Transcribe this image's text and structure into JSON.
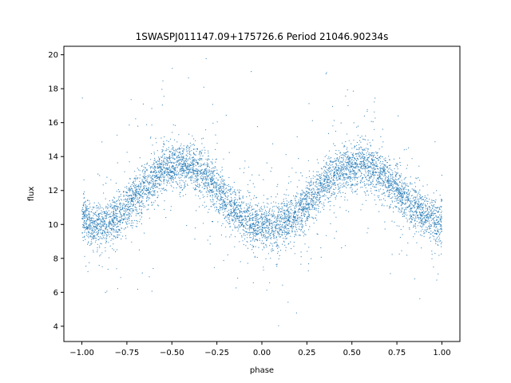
{
  "chart_data": {
    "type": "scatter",
    "title": "1SWASPJ011147.09+175726.6 Period 21046.90234s",
    "xlabel": "phase",
    "ylabel": "flux",
    "xlim": [
      -1.1,
      1.1
    ],
    "ylim": [
      3.1,
      20.5
    ],
    "xticks": [
      -1.0,
      -0.75,
      -0.5,
      -0.25,
      0.0,
      0.25,
      0.5,
      0.75,
      1.0
    ],
    "xtick_labels": [
      "−1.00",
      "−0.75",
      "−0.50",
      "−0.25",
      "0.00",
      "0.25",
      "0.50",
      "0.75",
      "1.00"
    ],
    "yticks": [
      4,
      6,
      8,
      10,
      12,
      14,
      16,
      18,
      20
    ],
    "ytick_labels": [
      "4",
      "6",
      "8",
      "10",
      "12",
      "14",
      "16",
      "18",
      "20"
    ],
    "grid": false,
    "marker_color": "#1f77b4",
    "series": [
      {
        "phase": [
          -1.0,
          -0.95,
          -0.9,
          -0.85,
          -0.8,
          -0.75,
          -0.7,
          -0.65,
          -0.6,
          -0.55,
          -0.5,
          -0.45,
          -0.4,
          -0.35,
          -0.3,
          -0.25,
          -0.2,
          -0.15,
          -0.1,
          -0.05,
          0.0,
          0.05,
          0.1,
          0.15,
          0.2,
          0.25,
          0.3,
          0.35,
          0.4,
          0.45,
          0.5,
          0.55,
          0.6,
          0.65,
          0.7,
          0.75,
          0.8,
          0.85,
          0.9,
          0.95,
          1.0
        ],
        "flux_trend": [
          10.5,
          10.0,
          9.9,
          10.1,
          10.5,
          11.1,
          11.7,
          12.3,
          12.8,
          13.2,
          13.4,
          13.5,
          13.4,
          13.1,
          12.7,
          12.1,
          11.4,
          10.8,
          10.3,
          10.0,
          9.9,
          9.9,
          10.0,
          10.3,
          10.7,
          11.2,
          11.8,
          12.4,
          12.9,
          13.2,
          13.4,
          13.5,
          13.4,
          13.1,
          12.7,
          12.1,
          11.5,
          11.0,
          10.6,
          10.2,
          10.0
        ]
      }
    ]
  }
}
